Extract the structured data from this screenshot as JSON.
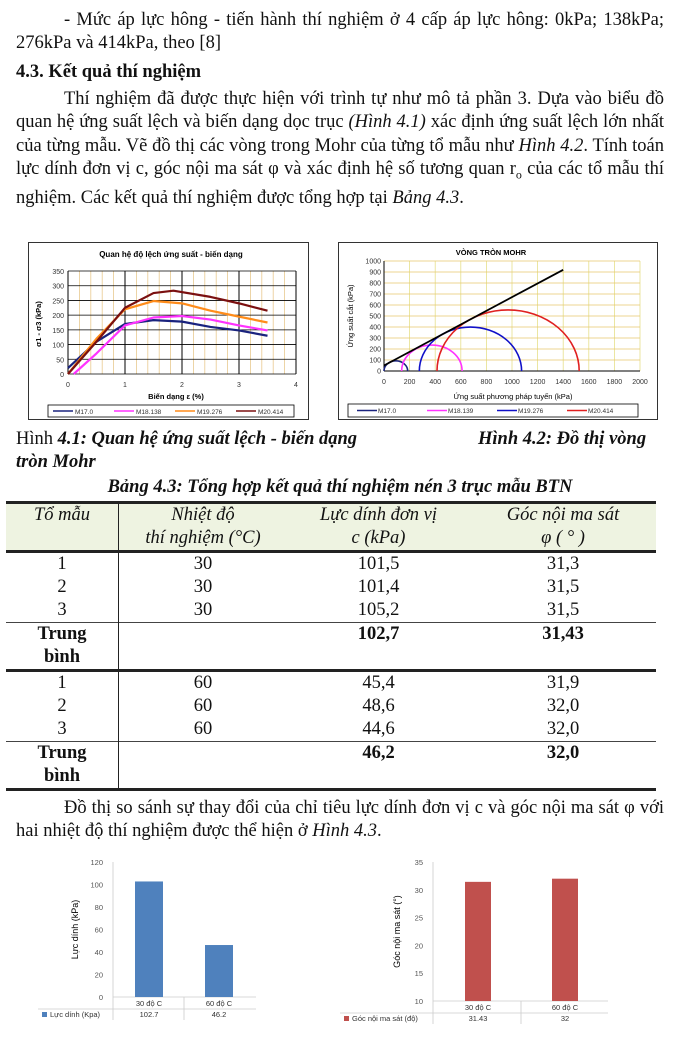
{
  "intro": {
    "line1": "- Mức áp lực hông - tiến hành thí nghiệm ở 4 cấp áp lực hông: 0kPa; 138kPa; 276kPa và 414kPa, theo [8]"
  },
  "section": {
    "heading": "4.3. Kết quả thí nghiệm",
    "p1_a": "Thí nghiệm đã được thực hiện với trình tự như mô tả phần 3. Dựa vào biểu đồ quan hệ ứng suất lệch và biến dạng dọc trục ",
    "p1_ref1": "(Hình 4.1)",
    "p1_b": " xác định ứng suất lệch lớn nhất của từng mẫu. Vẽ đồ thị các vòng trong Mohr của từng tổ mẫu như ",
    "p1_ref2": "Hình 4.2",
    "p1_c": ". Tính toán lực dính đơn vị c, góc nội ma sát φ và xác định hệ số tương quan r",
    "p1_sub": "o",
    "p1_d": " của các tổ mẫu thí nghiệm. Các kết quả thí nghiệm được tổng hợp tại ",
    "p1_ref3": "Bảng 4.3",
    "p1_e": "."
  },
  "captions": {
    "fig41_prefix": "Hình ",
    "fig41_text": "4.1: Quan hệ ứng suất lệch - biến dạng",
    "fig42_line1": "Hình 4.2: Đồ thị vòng",
    "fig42_line2": "tròn Mohr"
  },
  "table": {
    "caption": "Bảng 4.3: Tổng hợp kết quả thí nghiệm nén 3 trục mẫu BTN",
    "headers": [
      {
        "l1": "Tổ mẫu",
        "l2": ""
      },
      {
        "l1": "Nhiệt độ",
        "l2": "thí nghiệm (°C)"
      },
      {
        "l1": "Lực dính đơn vị",
        "l2": "c (kPa)"
      },
      {
        "l1": "Góc nội ma sát",
        "l2": "φ ( ° )"
      }
    ],
    "groups": [
      {
        "rows": [
          [
            "1",
            "30",
            "101,5",
            "31,3"
          ],
          [
            "2",
            "30",
            "101,4",
            "31,5"
          ],
          [
            "3",
            "30",
            "105,2",
            "31,5"
          ]
        ],
        "avg": {
          "label_l1": "Trung",
          "label_l2": "bình",
          "c": "102,7",
          "phi": "31,43"
        }
      },
      {
        "rows": [
          [
            "1",
            "60",
            "45,4",
            "31,9"
          ],
          [
            "2",
            "60",
            "48,6",
            "32,0"
          ],
          [
            "3",
            "60",
            "44,6",
            "32,0"
          ]
        ],
        "avg": {
          "label_l1": "Trung",
          "label_l2": "bình",
          "c": "46,2",
          "phi": "32,0"
        }
      }
    ]
  },
  "outro": {
    "text_a": "Đồ thị so sánh sự thay đổi của chỉ tiêu lực dính đơn vị c và góc nội ma sát φ với hai nhiệt độ thí nghiệm được thể hiện ở ",
    "ref": "Hình 4.3",
    "text_b": "."
  },
  "chart_data": [
    {
      "type": "line",
      "title": "Quan hệ độ lệch ứng suất - biến dạng",
      "xlabel": "Biến dạng ε (%)",
      "ylabel": "σ1 - σ3 (kPa)",
      "xlim": [
        0,
        4
      ],
      "ylim": [
        0,
        350
      ],
      "xticks": [
        "0",
        "1",
        "2",
        "3",
        "4"
      ],
      "yticks": [
        "0",
        "50",
        "100",
        "150",
        "200",
        "250",
        "300",
        "350"
      ],
      "grid": true,
      "legend_position": "bottom",
      "series": [
        {
          "name": "M17.0",
          "color": "#1a237e",
          "x": [
            0,
            0.5,
            1.0,
            1.5,
            2.0,
            2.5,
            3.0,
            3.5
          ],
          "y": [
            20,
            110,
            170,
            183,
            178,
            160,
            148,
            130
          ]
        },
        {
          "name": "M18.138",
          "color": "#ff33ff",
          "x": [
            0.1,
            0.5,
            1.0,
            1.5,
            2.0,
            2.5,
            3.0,
            3.5
          ],
          "y": [
            0,
            70,
            165,
            192,
            197,
            185,
            165,
            148
          ]
        },
        {
          "name": "M19.276",
          "color": "#ff8c1a",
          "x": [
            0,
            0.5,
            1.0,
            1.5,
            2.0,
            2.5,
            3.0,
            3.5
          ],
          "y": [
            0,
            120,
            220,
            248,
            240,
            215,
            195,
            175
          ]
        },
        {
          "name": "M20.414",
          "color": "#7b1010",
          "x": [
            0,
            0.5,
            1.0,
            1.5,
            1.85,
            2.5,
            3.0,
            3.5
          ],
          "y": [
            0,
            110,
            225,
            275,
            283,
            262,
            240,
            215
          ]
        }
      ]
    },
    {
      "type": "line",
      "title": "VÒNG TRÒN MOHR",
      "xlabel": "Ứng suất phương pháp tuyến (kPa)",
      "ylabel": "Ứng suất cắt (kPa)",
      "xlim": [
        0,
        2000
      ],
      "ylim": [
        0,
        1000
      ],
      "xticks": [
        "0",
        "200",
        "400",
        "600",
        "800",
        "1000",
        "1200",
        "1400",
        "1600",
        "1800",
        "2000"
      ],
      "yticks": [
        "0",
        "100",
        "200",
        "300",
        "400",
        "500",
        "600",
        "700",
        "800",
        "900",
        "1000"
      ],
      "grid": true,
      "legend_position": "bottom",
      "envelope": {
        "x": [
          0,
          1400
        ],
        "y": [
          50,
          920
        ],
        "color": "#000000"
      },
      "circles": [
        {
          "name": "M17.0",
          "color": "#1a237e",
          "sigma3": 0,
          "sigma1": 185
        },
        {
          "name": "M18.139",
          "color": "#ff33ff",
          "sigma3": 138,
          "sigma1": 610
        },
        {
          "name": "M19.276",
          "color": "#1010c8",
          "sigma3": 276,
          "sigma1": 1075
        },
        {
          "name": "M20.414",
          "color": "#e02020",
          "sigma3": 414,
          "sigma1": 1525
        }
      ]
    },
    {
      "type": "bar",
      "title": "",
      "categories": [
        "30 độ C",
        "60 độ C"
      ],
      "series": [
        {
          "name": "Lực dính (Kpa)",
          "values": [
            102.7,
            46.2
          ],
          "color": "#4f81bd"
        }
      ],
      "xlabel": "",
      "ylabel": "Lực dính (kPa)",
      "ylim": [
        0,
        120
      ],
      "yticks": [
        "0",
        "20",
        "40",
        "60",
        "80",
        "100",
        "120"
      ],
      "data_table": {
        "label": "Lực dính (Kpa)",
        "values": [
          "102.7",
          "46.2"
        ]
      }
    },
    {
      "type": "bar",
      "title": "",
      "categories": [
        "30 độ C",
        "60 độ C"
      ],
      "series": [
        {
          "name": "Góc nội ma sát (độ)",
          "values": [
            31.43,
            32
          ],
          "color": "#c0504d"
        }
      ],
      "xlabel": "",
      "ylabel": "Góc nội ma sát (°)",
      "ylim": [
        10,
        35
      ],
      "yticks": [
        "10",
        "15",
        "20",
        "25",
        "30",
        "35"
      ],
      "data_table": {
        "label": "Góc nội ma sát (độ)",
        "values": [
          "31.43",
          "32"
        ]
      }
    }
  ]
}
